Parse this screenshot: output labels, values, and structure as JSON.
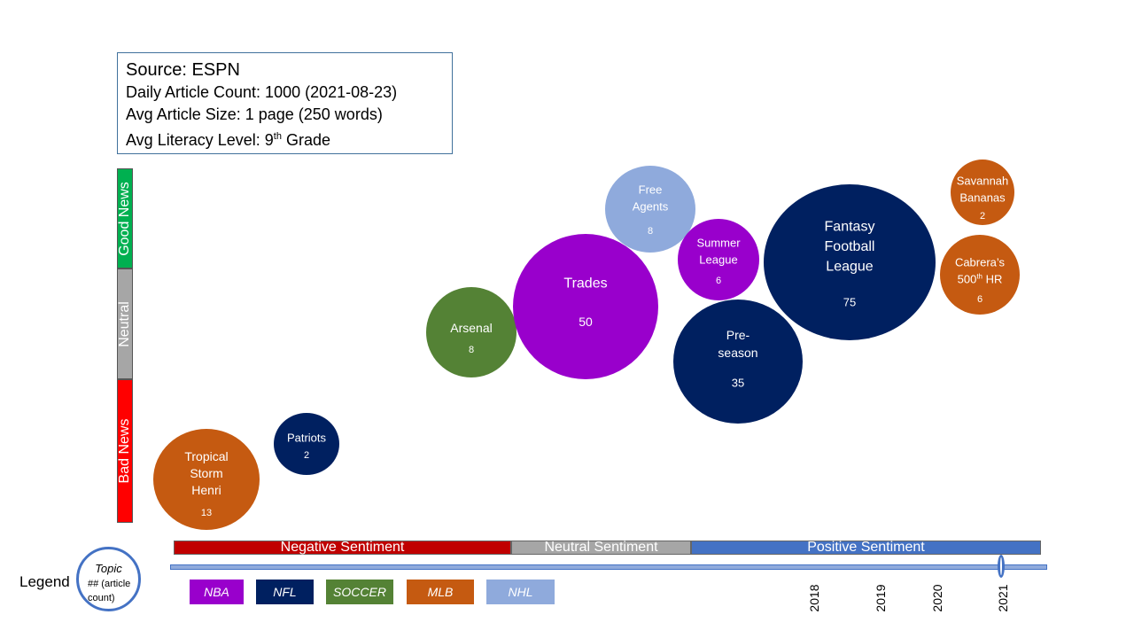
{
  "info": {
    "source": "Source: ESPN",
    "daily_count": "Daily Article Count: 1000 (2021-08-23)",
    "avg_size": "Avg Article Size: 1 page (250 words)",
    "literacy_prefix": "Avg Literacy Level: 9",
    "literacy_sup": "th",
    "literacy_suffix": " Grade"
  },
  "news_scale": {
    "good": "Good News",
    "neutral": "Neutral",
    "bad": "Bad News"
  },
  "sentiment_scale": {
    "negative": "Negative Sentiment",
    "neutral": "Neutral Sentiment",
    "positive": "Positive Sentiment"
  },
  "timeline": {
    "years": [
      "2018",
      "2019",
      "2020",
      "2021"
    ]
  },
  "legend": {
    "label": "Legend",
    "topic": "Topic",
    "count_line1": "## (article",
    "count_line2": "count)",
    "categories": [
      {
        "name": "NBA",
        "color": "#9900cc"
      },
      {
        "name": "NFL",
        "color": "#002060"
      },
      {
        "name": "SOCCER",
        "color": "#548235"
      },
      {
        "name": "MLB",
        "color": "#c55a11"
      },
      {
        "name": "NHL",
        "color": "#8faadc"
      }
    ]
  },
  "chart_data": {
    "type": "bubble",
    "x_axis": "sentiment",
    "y_axis": "news",
    "bubbles": [
      {
        "label_lines": [
          "Tropical",
          "Storm",
          "Henri"
        ],
        "count": 13,
        "category": "MLB"
      },
      {
        "label_lines": [
          "Patriots"
        ],
        "count": 2,
        "category": "NFL"
      },
      {
        "label_lines": [
          "Arsenal"
        ],
        "count": 8,
        "category": "SOCCER"
      },
      {
        "label_lines": [
          "Trades"
        ],
        "count": 50,
        "category": "NBA"
      },
      {
        "label_lines": [
          "Free",
          "Agents"
        ],
        "count": 8,
        "category": "NHL"
      },
      {
        "label_lines": [
          "Summer",
          "League"
        ],
        "count": 6,
        "category": "NBA"
      },
      {
        "label_lines": [
          "Pre-",
          "season"
        ],
        "count": 35,
        "category": "NFL"
      },
      {
        "label_lines": [
          "Fantasy",
          "Football",
          "League"
        ],
        "count": 75,
        "category": "NFL"
      },
      {
        "label_lines": [
          "Savannah",
          "Bananas"
        ],
        "count": 2,
        "category": "MLB"
      },
      {
        "label_lines": [
          "Cabrera’s",
          "500th HR"
        ],
        "count": 6,
        "category": "MLB"
      }
    ]
  }
}
